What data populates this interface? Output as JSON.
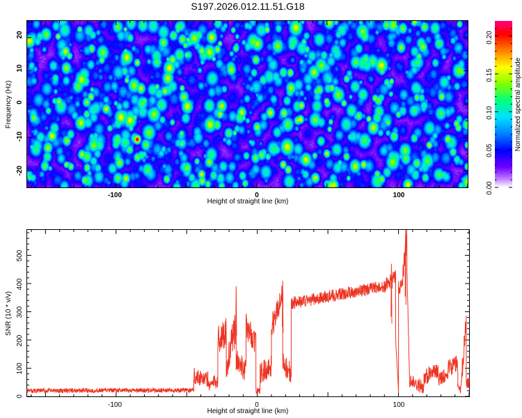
{
  "title": "S197.2026.012.11.51.G18",
  "chart_data": [
    {
      "type": "heatmap",
      "xlabel": "Height of straight line (km)",
      "ylabel": "Frequency (Hz)",
      "xlim": [
        -163,
        150
      ],
      "ylim": [
        -25,
        25
      ],
      "x_ticks": [
        -100,
        0,
        100
      ],
      "x_tick_labels": [
        "-100",
        "0",
        "100"
      ],
      "y_ticks": [
        20,
        10,
        0,
        -10,
        -20
      ],
      "y_tick_labels": [
        "20",
        "10",
        "0",
        "-10",
        "-20"
      ],
      "colorbar": {
        "label": "Normalized spectral amplitude",
        "range": [
          0,
          0.22
        ],
        "ticks": [
          0.0,
          0.05,
          0.1,
          0.15,
          0.2
        ],
        "tick_labels": [
          "0.00",
          "0.05",
          "0.10",
          "0.15",
          "0.20"
        ],
        "colormap": [
          "#ffffff",
          "#c080ff",
          "#7000ff",
          "#0000ff",
          "#0080ff",
          "#00e0ff",
          "#00ff80",
          "#80ff00",
          "#ffff00",
          "#ff8000",
          "#ff0000",
          "#ff0080"
        ]
      },
      "peaks": [
        {
          "x": -85,
          "y": -10.5,
          "v": 0.22
        },
        {
          "x": 31,
          "y": -4.5,
          "v": 0.16
        },
        {
          "x": -28,
          "y": 16.5,
          "v": 0.14
        },
        {
          "x": -90,
          "y": 20,
          "v": 0.12
        },
        {
          "x": -80,
          "y": 1,
          "v": 0.12
        },
        {
          "x": -2,
          "y": 9.5,
          "v": 0.11
        },
        {
          "x": 117,
          "y": 2,
          "v": 0.11
        },
        {
          "x": -159,
          "y": -22,
          "v": 0.1
        },
        {
          "x": 58,
          "y": 21,
          "v": 0.1
        }
      ]
    },
    {
      "type": "line",
      "xlabel": "Height of straight line (km)",
      "ylabel": "SNR (10 * v/v)",
      "xlim": [
        -163,
        150
      ],
      "ylim": [
        0,
        590
      ],
      "x_ticks": [
        -100,
        0,
        100
      ],
      "x_tick_labels": [
        "-100",
        "0",
        "100"
      ],
      "y_ticks": [
        0,
        100,
        200,
        300,
        400,
        500
      ],
      "y_tick_labels": [
        "0",
        "100",
        "200",
        "300",
        "400",
        "500"
      ],
      "color": "#ee3322",
      "segments": [
        {
          "x0": -163,
          "x1": -45,
          "y0": 20,
          "y1": 22,
          "noise": 8
        },
        {
          "x0": -45,
          "x1": -35,
          "y0": 75,
          "y1": 60,
          "noise": 30
        },
        {
          "x0": -35,
          "x1": -28,
          "y0": 40,
          "y1": 55,
          "noise": 25
        },
        {
          "x0": -28,
          "x1": -22,
          "y0": 200,
          "y1": 230,
          "noise": 55
        },
        {
          "x0": -22,
          "x1": -15,
          "y0": 110,
          "y1": 250,
          "noise": 60
        },
        {
          "x0": -15,
          "x1": -8,
          "y0": 130,
          "y1": 90,
          "noise": 40
        },
        {
          "x0": -8,
          "x1": -1,
          "y0": 250,
          "y1": 190,
          "noise": 45
        },
        {
          "x0": -1,
          "x1": 2,
          "y0": 20,
          "y1": 20,
          "noise": 12
        },
        {
          "x0": 2,
          "x1": 10,
          "y0": 80,
          "y1": 110,
          "noise": 40
        },
        {
          "x0": 10,
          "x1": 18,
          "y0": 240,
          "y1": 370,
          "noise": 45
        },
        {
          "x0": 18,
          "x1": 24,
          "y0": 120,
          "y1": 80,
          "noise": 40
        },
        {
          "x0": 24,
          "x1": 90,
          "y0": 330,
          "y1": 390,
          "noise": 22
        },
        {
          "x0": 90,
          "x1": 98,
          "y0": 390,
          "y1": 420,
          "noise": 30
        },
        {
          "x0": 98,
          "x1": 100,
          "y0": 200,
          "y1": 20,
          "noise": 10
        },
        {
          "x0": 100,
          "x1": 103,
          "y0": 390,
          "y1": 390,
          "noise": 25
        },
        {
          "x0": 103,
          "x1": 106,
          "y0": 430,
          "y1": 560,
          "noise": 40
        },
        {
          "x0": 106,
          "x1": 108,
          "y0": 450,
          "y1": 20,
          "noise": 15
        },
        {
          "x0": 108,
          "x1": 118,
          "y0": 60,
          "y1": 30,
          "noise": 25
        },
        {
          "x0": 118,
          "x1": 128,
          "y0": 70,
          "y1": 90,
          "noise": 30
        },
        {
          "x0": 128,
          "x1": 135,
          "y0": 60,
          "y1": 80,
          "noise": 25
        },
        {
          "x0": 135,
          "x1": 142,
          "y0": 100,
          "y1": 120,
          "noise": 30
        },
        {
          "x0": 142,
          "x1": 144,
          "y0": 40,
          "y1": 20,
          "noise": 10
        },
        {
          "x0": 144,
          "x1": 148,
          "y0": 30,
          "y1": 270,
          "noise": 40
        },
        {
          "x0": 148,
          "x1": 150,
          "y0": 40,
          "y1": 50,
          "noise": 20
        }
      ],
      "spikes": [
        {
          "x": -15,
          "y": 390
        },
        {
          "x": 105,
          "y": 590
        },
        {
          "x": 95,
          "y": 470
        },
        {
          "x": 18,
          "y": 410
        }
      ]
    }
  ]
}
